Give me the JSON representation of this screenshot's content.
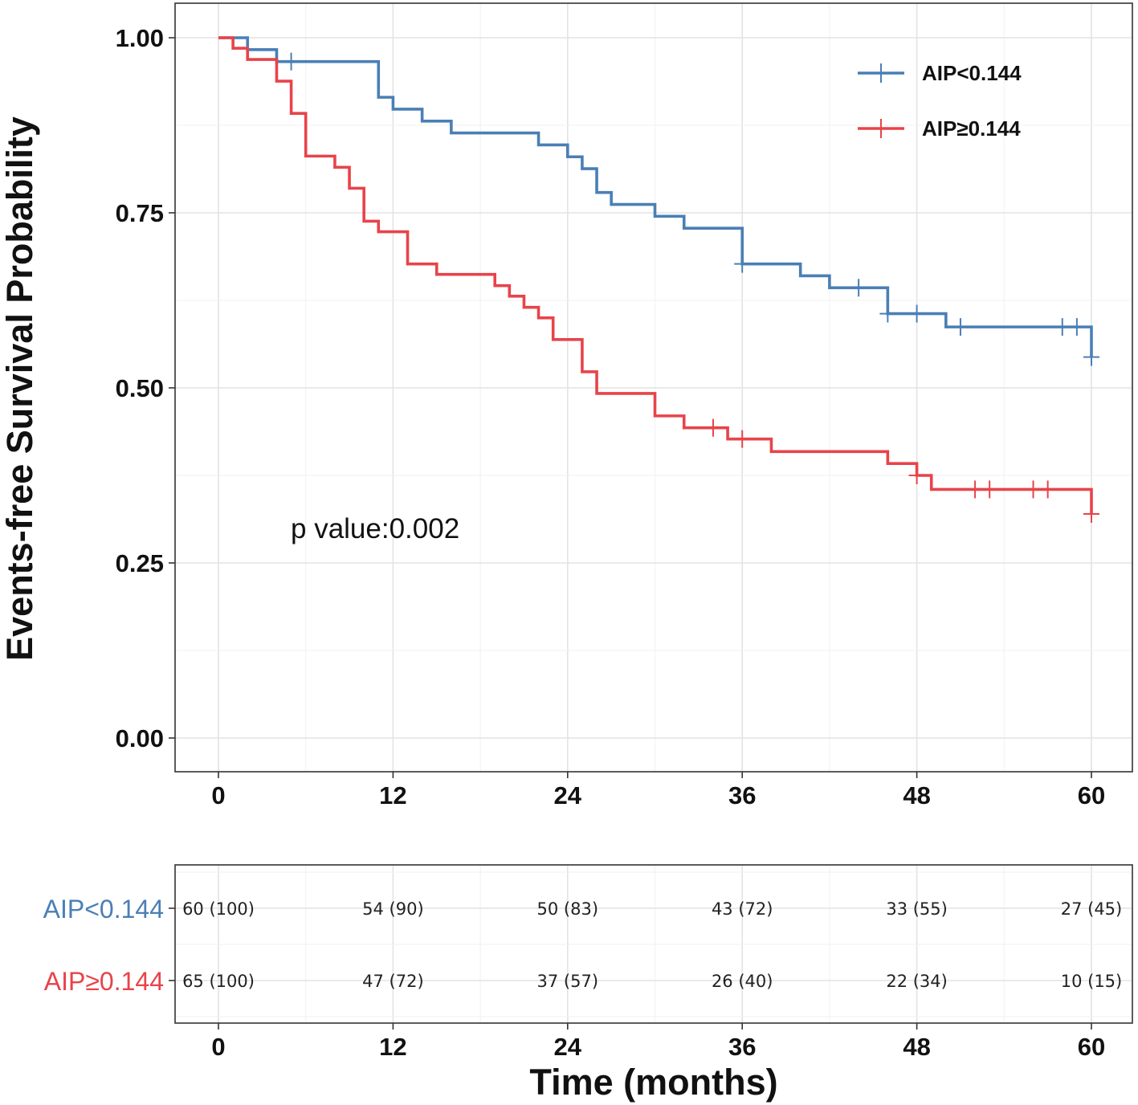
{
  "chart_data": {
    "type": "line",
    "subtype": "kaplan-meier",
    "title": "",
    "xlabel": "Time (months)",
    "ylabel": "Events-free Survival Probability",
    "xlim": [
      0,
      60
    ],
    "ylim": [
      0,
      1
    ],
    "xticks": [
      "0",
      "12",
      "24",
      "36",
      "48",
      "60"
    ],
    "yticks": [
      "0.00",
      "0.25",
      "0.50",
      "0.75",
      "1.00"
    ],
    "grid": true,
    "legend_position": "top-right",
    "annotation": "p value:0.002",
    "series": [
      {
        "name": "AIP<0.144",
        "color": "#4a7fb5",
        "steps": [
          [
            0,
            1.0
          ],
          [
            2,
            0.983
          ],
          [
            4,
            0.966
          ],
          [
            11,
            0.915
          ],
          [
            12,
            0.898
          ],
          [
            14,
            0.881
          ],
          [
            16,
            0.864
          ],
          [
            22,
            0.847
          ],
          [
            24,
            0.83
          ],
          [
            25,
            0.813
          ],
          [
            26,
            0.779
          ],
          [
            27,
            0.762
          ],
          [
            30,
            0.745
          ],
          [
            32,
            0.728
          ],
          [
            36,
            0.677
          ],
          [
            40,
            0.66
          ],
          [
            42,
            0.643
          ],
          [
            46,
            0.606
          ],
          [
            50,
            0.587
          ],
          [
            60,
            0.544
          ]
        ],
        "censors": [
          [
            5,
            0.966
          ],
          [
            36,
            0.677
          ],
          [
            44,
            0.643
          ],
          [
            46,
            0.606
          ],
          [
            48,
            0.606
          ],
          [
            51,
            0.587
          ],
          [
            58,
            0.587
          ],
          [
            59,
            0.587
          ],
          [
            60,
            0.544
          ]
        ]
      },
      {
        "name": "AIP≥0.144",
        "color": "#e8434a",
        "steps": [
          [
            0,
            1.0
          ],
          [
            1,
            0.985
          ],
          [
            2,
            0.969
          ],
          [
            4,
            0.938
          ],
          [
            5,
            0.892
          ],
          [
            6,
            0.831
          ],
          [
            8,
            0.815
          ],
          [
            9,
            0.785
          ],
          [
            10,
            0.738
          ],
          [
            11,
            0.723
          ],
          [
            13,
            0.677
          ],
          [
            15,
            0.662
          ],
          [
            19,
            0.646
          ],
          [
            20,
            0.631
          ],
          [
            21,
            0.615
          ],
          [
            22,
            0.6
          ],
          [
            23,
            0.569
          ],
          [
            25,
            0.523
          ],
          [
            26,
            0.492
          ],
          [
            30,
            0.46
          ],
          [
            32,
            0.443
          ],
          [
            35,
            0.427
          ],
          [
            38,
            0.409
          ],
          [
            46,
            0.392
          ],
          [
            48,
            0.375
          ],
          [
            49,
            0.355
          ],
          [
            60,
            0.32
          ]
        ],
        "censors": [
          [
            34,
            0.443
          ],
          [
            36,
            0.427
          ],
          [
            48,
            0.375
          ],
          [
            52,
            0.355
          ],
          [
            53,
            0.355
          ],
          [
            56,
            0.355
          ],
          [
            57,
            0.355
          ],
          [
            60,
            0.32
          ]
        ]
      }
    ],
    "risk_table": {
      "times": [
        "0",
        "12",
        "24",
        "36",
        "48",
        "60"
      ],
      "rows": [
        {
          "strata": "AIP<0.144",
          "color": "#4a7fb5",
          "values": [
            "60 (100)",
            "54 (90)",
            "50 (83)",
            "43 (72)",
            "33 (55)",
            "27 (45)"
          ]
        },
        {
          "strata": "AIP≥0.144",
          "color": "#e8434a",
          "values": [
            "65 (100)",
            "47 (72)",
            "37 (57)",
            "26 (40)",
            "22 (34)",
            "10 (15)"
          ]
        }
      ]
    }
  }
}
